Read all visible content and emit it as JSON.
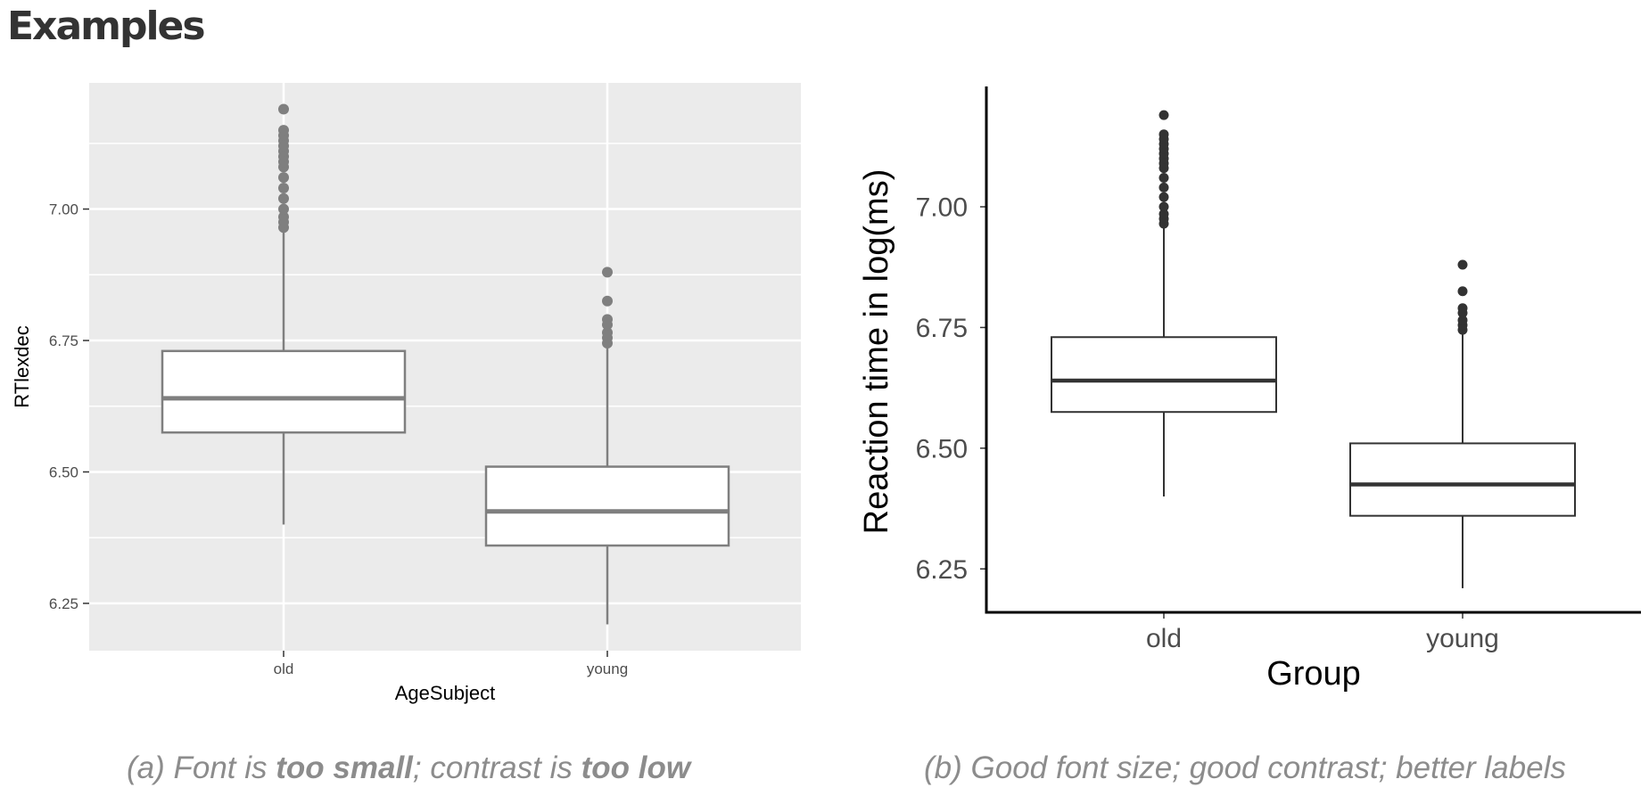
{
  "title": "Examples",
  "chart_data": [
    {
      "type": "box",
      "xlabel": "AgeSubject",
      "ylabel": "RTlexdec",
      "categories": [
        "old",
        "young"
      ],
      "ylim": [
        6.16,
        7.24
      ],
      "yticks": [
        6.25,
        6.5,
        6.75,
        7.0
      ],
      "ytick_labels": [
        "6.25",
        "6.50",
        "6.75",
        "7.00"
      ],
      "grid": true,
      "boxes": [
        {
          "category": "old",
          "whisker_low": 6.4,
          "q1": 6.575,
          "median": 6.64,
          "q3": 6.73,
          "whisker_high": 6.96,
          "outliers": [
            6.965,
            6.975,
            6.985,
            7.0,
            7.02,
            7.04,
            7.06,
            7.08,
            7.09,
            7.1,
            7.11,
            7.12,
            7.13,
            7.14,
            7.15,
            7.19
          ]
        },
        {
          "category": "young",
          "whisker_low": 6.21,
          "q1": 6.36,
          "median": 6.425,
          "q3": 6.51,
          "whisker_high": 6.74,
          "outliers": [
            6.745,
            6.755,
            6.765,
            6.78,
            6.79,
            6.825,
            6.88
          ]
        }
      ],
      "style": {
        "panel_bg": "#ebebeb",
        "box_stroke": "#7f7f7f",
        "point": "#7f7f7f",
        "axis_text": "#4d4d4d",
        "label_text": "#000000"
      }
    },
    {
      "type": "box",
      "xlabel": "Group",
      "ylabel": "Reaction time in log(ms)",
      "categories": [
        "old",
        "young"
      ],
      "ylim": [
        6.16,
        7.24
      ],
      "yticks": [
        6.25,
        6.5,
        6.75,
        7.0
      ],
      "ytick_labels": [
        "6.25",
        "6.50",
        "6.75",
        "7.00"
      ],
      "grid": false,
      "boxes": [
        {
          "category": "old",
          "whisker_low": 6.4,
          "q1": 6.575,
          "median": 6.64,
          "q3": 6.73,
          "whisker_high": 6.96,
          "outliers": [
            6.965,
            6.975,
            6.985,
            7.0,
            7.02,
            7.04,
            7.06,
            7.08,
            7.09,
            7.1,
            7.11,
            7.12,
            7.13,
            7.14,
            7.15,
            7.19
          ]
        },
        {
          "category": "young",
          "whisker_low": 6.21,
          "q1": 6.36,
          "median": 6.425,
          "q3": 6.51,
          "whisker_high": 6.74,
          "outliers": [
            6.745,
            6.755,
            6.765,
            6.78,
            6.79,
            6.825,
            6.88
          ]
        }
      ],
      "style": {
        "panel_bg": "#ffffff",
        "box_stroke": "#333333",
        "point": "#333333",
        "axis_text": "#4d4d4d",
        "label_text": "#000000"
      }
    }
  ],
  "captions": {
    "a": {
      "prefix": "(a) Font is ",
      "bold1": "too small",
      "middle": "; contrast is ",
      "bold2": "too low"
    },
    "b": {
      "text": "(b) Good font size; good contrast; better labels"
    }
  }
}
